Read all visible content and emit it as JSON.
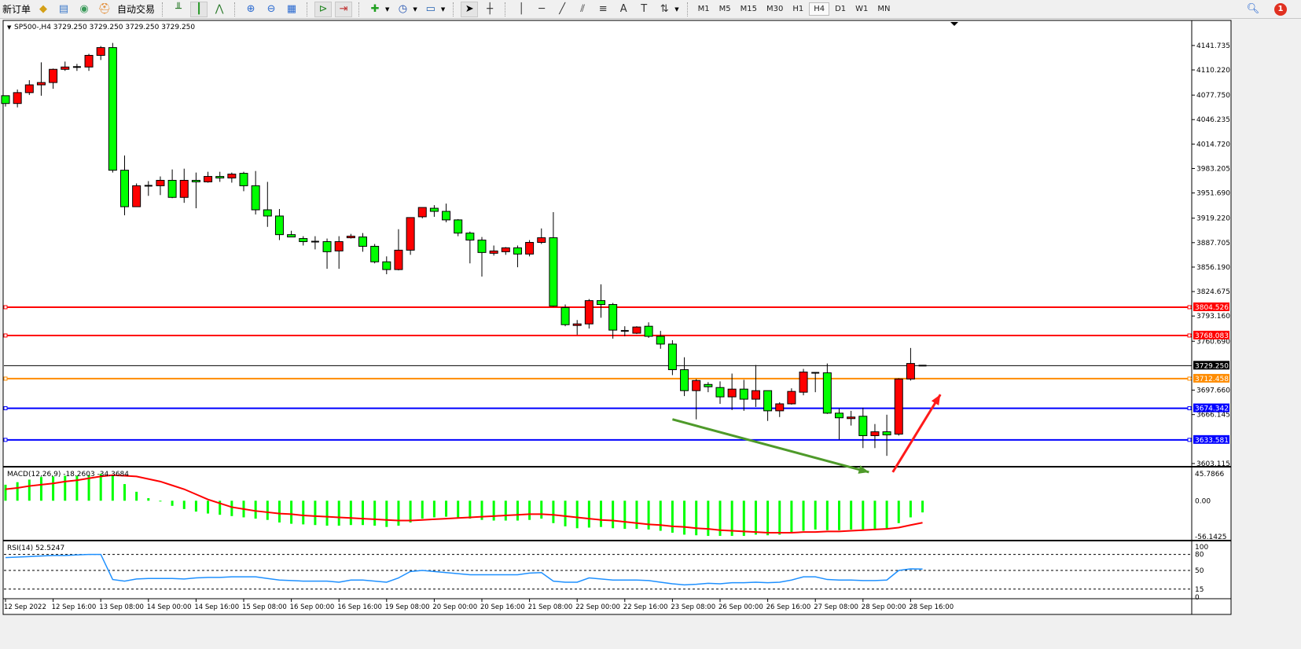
{
  "toolbar": {
    "new_order_label": "新订单",
    "autotrade_label": "自动交易",
    "groups": [
      [
        "gold-bars-icon",
        "market-watch-icon",
        "signal-antenna-icon",
        "autotrade-icon"
      ],
      [
        "bar-chart-icon",
        "candlestick-icon",
        "line-chart-icon"
      ],
      [
        "zoom-in-icon",
        "zoom-out-icon",
        "tile-windows-icon"
      ],
      [
        "auto-scroll-icon",
        "chart-shift-icon"
      ],
      [
        "add-indicator-icon",
        "periods-clock-icon",
        "templates-icon"
      ],
      [
        "cursor-icon",
        "crosshair-icon"
      ],
      [
        "vertical-line-icon",
        "horizontal-line-icon",
        "trend-line-icon",
        "fibo-channel-icon",
        "fibo-retracement-icon",
        "text-icon",
        "text-label-icon",
        "arrows-icon"
      ]
    ],
    "active_icons": [
      "candlestick-icon",
      "auto-scroll-icon",
      "chart-shift-icon",
      "cursor-icon"
    ],
    "timeframes": [
      "M1",
      "M5",
      "M15",
      "M30",
      "H1",
      "H4",
      "D1",
      "W1",
      "MN"
    ],
    "active_timeframe": "H4",
    "notification_count": "1"
  },
  "chart_data": {
    "type": "candlestick",
    "title": "SP500-,H4  3729.250 3729.250 3729.250 3729.250",
    "up_color": "#ff0000",
    "down_color": "#00ff00",
    "ylim": [
      3600,
      4173
    ],
    "y_ticks": [
      "4141.735",
      "4110.220",
      "4077.750",
      "4046.235",
      "4014.720",
      "3983.205",
      "3951.690",
      "3919.220",
      "3887.705",
      "3856.190",
      "3824.675",
      "3793.160",
      "3760.690",
      "3697.660",
      "3666.145",
      "3603.115"
    ],
    "x_ticks": [
      "12 Sep 2022",
      "12 Sep 16:00",
      "13 Sep 08:00",
      "14 Sep 00:00",
      "14 Sep 16:00",
      "15 Sep 08:00",
      "16 Sep 00:00",
      "16 Sep 16:00",
      "19 Sep 08:00",
      "20 Sep 00:00",
      "20 Sep 16:00",
      "21 Sep 08:00",
      "22 Sep 00:00",
      "22 Sep 16:00",
      "23 Sep 08:00",
      "26 Sep 00:00",
      "26 Sep 16:00",
      "27 Sep 08:00",
      "28 Sep 00:00",
      "28 Sep 16:00"
    ],
    "x_tick_every_bars": 4,
    "ohlc": [
      [
        4077,
        4077,
        4063,
        4067
      ],
      [
        4067,
        4085,
        4062,
        4081
      ],
      [
        4081,
        4097,
        4078,
        4091
      ],
      [
        4091,
        4120,
        4077,
        4094
      ],
      [
        4094,
        4112,
        4086,
        4111
      ],
      [
        4111,
        4121,
        4109,
        4114
      ],
      [
        4114,
        4118,
        4109,
        4114
      ],
      [
        4114,
        4131,
        4109,
        4129
      ],
      [
        4129,
        4141,
        4123,
        4139
      ],
      [
        4139,
        4145,
        3978,
        3981
      ],
      [
        3981,
        4000,
        3923,
        3934
      ],
      [
        3934,
        3964,
        3934,
        3961
      ],
      [
        3961,
        3967,
        3948,
        3961
      ],
      [
        3961,
        3973,
        3949,
        3968
      ],
      [
        3968,
        3982,
        3945,
        3946
      ],
      [
        3946,
        3983,
        3939,
        3968
      ],
      [
        3968,
        3978,
        3932,
        3966
      ],
      [
        3966,
        3979,
        3965,
        3973
      ],
      [
        3973,
        3979,
        3966,
        3971
      ],
      [
        3971,
        3978,
        3965,
        3976
      ],
      [
        3977,
        3979,
        3954,
        3961
      ],
      [
        3961,
        3980,
        3924,
        3930
      ],
      [
        3930,
        3966,
        3908,
        3922
      ],
      [
        3922,
        3931,
        3891,
        3898
      ],
      [
        3898,
        3903,
        3895,
        3895
      ],
      [
        3893,
        3896,
        3884,
        3889
      ],
      [
        3889,
        3896,
        3879,
        3889
      ],
      [
        3889,
        3893,
        3854,
        3876
      ],
      [
        3877,
        3896,
        3854,
        3889
      ],
      [
        3895,
        3899,
        3893,
        3896
      ],
      [
        3895,
        3900,
        3876,
        3883
      ],
      [
        3883,
        3886,
        3861,
        3863
      ],
      [
        3863,
        3870,
        3847,
        3853
      ],
      [
        3853,
        3905,
        3852,
        3878
      ],
      [
        3878,
        3920,
        3872,
        3920
      ],
      [
        3921,
        3933,
        3919,
        3933
      ],
      [
        3932,
        3936,
        3921,
        3928
      ],
      [
        3928,
        3938,
        3914,
        3917
      ],
      [
        3917,
        3918,
        3896,
        3900
      ],
      [
        3900,
        3902,
        3861,
        3891
      ],
      [
        3891,
        3895,
        3844,
        3875
      ],
      [
        3874,
        3884,
        3871,
        3877
      ],
      [
        3876,
        3882,
        3872,
        3881
      ],
      [
        3881,
        3884,
        3856,
        3873
      ],
      [
        3873,
        3891,
        3870,
        3888
      ],
      [
        3888,
        3906,
        3886,
        3894
      ],
      [
        3894,
        3927,
        3805,
        3806
      ],
      [
        3804,
        3808,
        3780,
        3782
      ],
      [
        3781,
        3788,
        3769,
        3783
      ],
      [
        3783,
        3815,
        3777,
        3813
      ],
      [
        3813,
        3834,
        3791,
        3808
      ],
      [
        3808,
        3810,
        3764,
        3775
      ],
      [
        3774,
        3780,
        3767,
        3774
      ],
      [
        3771,
        3780,
        3770,
        3779
      ],
      [
        3780,
        3785,
        3765,
        3767
      ],
      [
        3767,
        3774,
        3751,
        3757
      ],
      [
        3757,
        3762,
        3717,
        3724
      ],
      [
        3724,
        3740,
        3690,
        3697
      ],
      [
        3697,
        3712,
        3660,
        3710
      ],
      [
        3705,
        3708,
        3695,
        3702
      ],
      [
        3701,
        3709,
        3680,
        3689
      ],
      [
        3689,
        3719,
        3672,
        3699
      ],
      [
        3699,
        3711,
        3671,
        3686
      ],
      [
        3686,
        3730,
        3676,
        3697
      ],
      [
        3697,
        3697,
        3658,
        3671
      ],
      [
        3671,
        3682,
        3663,
        3680
      ],
      [
        3680,
        3700,
        3679,
        3696
      ],
      [
        3695,
        3725,
        3691,
        3721
      ],
      [
        3720,
        3721,
        3695,
        3720
      ],
      [
        3720,
        3732,
        3667,
        3668
      ],
      [
        3668,
        3674,
        3634,
        3662
      ],
      [
        3661,
        3671,
        3652,
        3663
      ],
      [
        3664,
        3675,
        3623,
        3639
      ],
      [
        3639,
        3654,
        3623,
        3644
      ],
      [
        3644,
        3666,
        3613,
        3640
      ],
      [
        3641,
        3713,
        3639,
        3712
      ],
      [
        3712,
        3752,
        3710,
        3732
      ],
      [
        3729.25,
        3729.25,
        3729.25,
        3729.25
      ]
    ],
    "horizontal_lines": [
      {
        "value": 3804.526,
        "label": "3804.526",
        "color": "#ff0000"
      },
      {
        "value": 3768.083,
        "label": "3768.083",
        "color": "#ff0000"
      },
      {
        "value": 3729.25,
        "label": "3729.250",
        "color": "#000000"
      },
      {
        "value": 3712.458,
        "label": "3712.458",
        "color": "#ff8c00"
      },
      {
        "value": 3674.342,
        "label": "3674.342",
        "color": "#0000ff"
      },
      {
        "value": 3633.581,
        "label": "3633.581",
        "color": "#0000ff"
      }
    ],
    "drawn_arrows": [
      {
        "from": [
          56,
          3660
        ],
        "to": [
          72.5,
          3592
        ],
        "color": "#4e9a2a"
      },
      {
        "from": [
          74.5,
          3592
        ],
        "to": [
          78.5,
          3692
        ],
        "color": "#ff1a1a"
      }
    ],
    "macd": {
      "label": "MACD(12,26,9) -18.2603 -34.3684",
      "ylim": [
        -56.1425,
        45.7866
      ],
      "y_ticks": [
        "45.7866",
        "0.00",
        "-56.1425"
      ],
      "histogram_color": "#00ff00",
      "signal_color": "#ff0000",
      "histogram": [
        25,
        29,
        33,
        37,
        38,
        39,
        39,
        40,
        42,
        39,
        26,
        14,
        4,
        -1,
        -8,
        -13,
        -17,
        -20,
        -22,
        -24,
        -26,
        -28,
        -30,
        -34,
        -36,
        -37,
        -38,
        -39,
        -39,
        -38,
        -38,
        -39,
        -41,
        -39,
        -34,
        -28,
        -26,
        -25,
        -26,
        -28,
        -30,
        -31,
        -31,
        -31,
        -30,
        -28,
        -35,
        -40,
        -43,
        -42,
        -41,
        -43,
        -44,
        -44,
        -45,
        -47,
        -50,
        -53,
        -54,
        -55,
        -55,
        -55,
        -55,
        -53,
        -54,
        -53,
        -51,
        -47,
        -45,
        -46,
        -46,
        -45,
        -45,
        -44,
        -43,
        -35,
        -26,
        -18.2603
      ],
      "signal": [
        18,
        20,
        23,
        25,
        27,
        30,
        32,
        35,
        38,
        40,
        39,
        38,
        34,
        30,
        24,
        18,
        10,
        2,
        -4,
        -10,
        -13,
        -16,
        -18,
        -20,
        -21,
        -23,
        -24,
        -25,
        -26,
        -27,
        -28,
        -29,
        -30,
        -31,
        -31,
        -30,
        -29,
        -28,
        -27,
        -26,
        -25,
        -24,
        -23,
        -22,
        -21,
        -21,
        -22,
        -24,
        -26,
        -28,
        -30,
        -31,
        -33,
        -35,
        -37,
        -38,
        -40,
        -41,
        -43,
        -44,
        -46,
        -47,
        -48,
        -49,
        -50,
        -50,
        -50,
        -49,
        -49,
        -48,
        -48,
        -47,
        -46,
        -45,
        -44,
        -42,
        -38,
        -34.3684
      ]
    },
    "rsi": {
      "label": "RSI(14) 52.5247",
      "ylim": [
        0,
        100
      ],
      "levels": [
        80,
        50,
        15
      ],
      "y_ticks": [
        "100",
        "80",
        "50",
        "15",
        "0"
      ],
      "color": "#1e90ff",
      "values": [
        74,
        75,
        76,
        77,
        78,
        78,
        79,
        80,
        80,
        33,
        30,
        34,
        35,
        35,
        35,
        34,
        36,
        37,
        37,
        38,
        38,
        38,
        35,
        32,
        31,
        30,
        30,
        30,
        28,
        32,
        32,
        30,
        28,
        36,
        48,
        50,
        48,
        46,
        44,
        42,
        42,
        42,
        42,
        42,
        45,
        46,
        30,
        28,
        28,
        36,
        34,
        32,
        32,
        32,
        31,
        28,
        25,
        23,
        24,
        26,
        25,
        27,
        27,
        28,
        27,
        28,
        32,
        38,
        38,
        33,
        32,
        32,
        31,
        31,
        32,
        50,
        53,
        52.5247
      ]
    }
  }
}
